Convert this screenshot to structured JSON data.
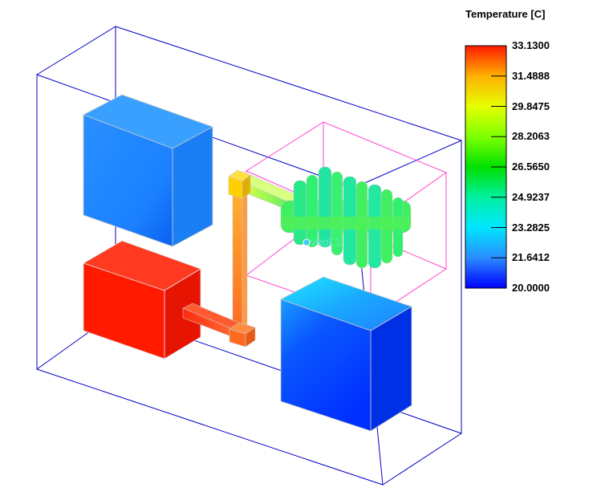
{
  "legend": {
    "title": "Temperature [C]",
    "ticks": [
      "33.1300",
      "31.4888",
      "29.8475",
      "28.2063",
      "26.5650",
      "24.9237",
      "23.2825",
      "21.6412",
      "20.0000"
    ],
    "colors": [
      "#ff1a00",
      "#ffb000",
      "#e6ff00",
      "#7fff00",
      "#00e000",
      "#00f0a0",
      "#00e6ff",
      "#2a8cff",
      "#0000ff"
    ]
  },
  "scene": {
    "vent_label": "vent.1",
    "colors": {
      "enclosure_edges": "#0000c8",
      "vent_box_edges": "#ff44cc",
      "block_top_left": "#1e8cff",
      "block_bottom_left": "#ff1a00",
      "block_bottom_right": "#0050ff",
      "heatsink": "#40f060",
      "heat_pipe": "#ff8c30",
      "heat_pipe_joint": "#ffd000"
    }
  }
}
